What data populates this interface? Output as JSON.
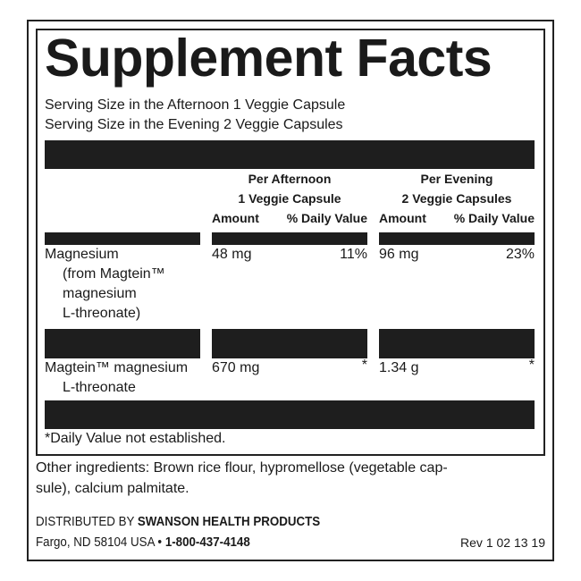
{
  "title": "Supplement Facts",
  "serving": [
    "Serving Size in the Afternoon 1 Veggie Capsule",
    "Serving Size in the Evening 2 Veggie Capsules"
  ],
  "columns": {
    "afternoon": {
      "line1": "Per Afternoon",
      "line2": "1 Veggie Capsule"
    },
    "evening": {
      "line1": "Per Evening",
      "line2": "2 Veggie Capsules"
    },
    "amount": "Amount",
    "dv": "% Daily Value"
  },
  "rows": [
    {
      "name": [
        "Magnesium",
        "(from Magtein™",
        "magnesium",
        "L-threonate)"
      ],
      "afternoon_amount": "48 mg",
      "afternoon_dv": "11%",
      "evening_amount": "96 mg",
      "evening_dv": "23%"
    },
    {
      "name": [
        "Magtein™ magnesium",
        "L-threonate"
      ],
      "afternoon_amount": "670 mg",
      "afternoon_dv": "*",
      "evening_amount": "1.34 g",
      "evening_dv": "*"
    }
  ],
  "footnote": "*Daily Value not established.",
  "other_ingredients": [
    "Other ingredients: Brown rice flour, hypromellose (vegetable cap-",
    "sule), calcium palmitate."
  ],
  "distributor": {
    "prefix": "DISTRIBUTED BY ",
    "name": "SWANSON HEALTH PRODUCTS",
    "address": "Fargo, ND 58104 USA • ",
    "phone": "1-800-437-4148",
    "rev": "Rev 1 02 13 19"
  }
}
